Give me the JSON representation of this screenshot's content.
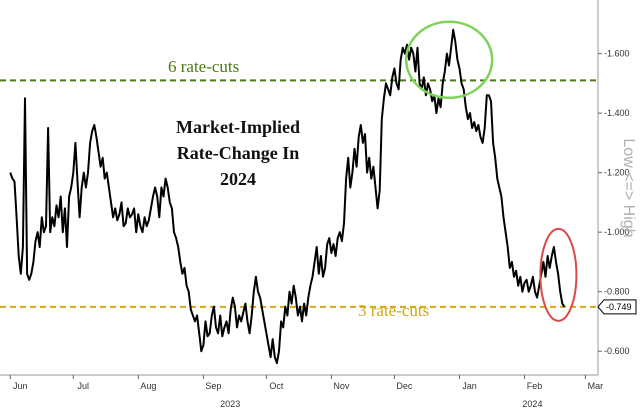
{
  "chart_data": {
    "type": "line",
    "title_lines": [
      "Market-Implied",
      "Rate-Change In",
      "2024"
    ],
    "ylabel": "Low <=> High",
    "y_ticks": [
      0.6,
      0.8,
      1.0,
      1.2,
      1.4,
      1.6
    ],
    "y_tick_labels": [
      "-0.600",
      "-0.800",
      "-1.000",
      "-1.200",
      "-1.400",
      "-1.600"
    ],
    "ylim": [
      0.52,
      1.76
    ],
    "x_ticks": [
      {
        "label": "Jun",
        "d": 0
      },
      {
        "label": "Jul",
        "d": 30
      },
      {
        "label": "Aug",
        "d": 61
      },
      {
        "label": "Sep",
        "d": 92
      },
      {
        "label": "Oct",
        "d": 122
      },
      {
        "label": "Nov",
        "d": 153
      },
      {
        "label": "Dec",
        "d": 183
      },
      {
        "label": "Jan",
        "d": 214
      },
      {
        "label": "Feb",
        "d": 245
      },
      {
        "label": "Mar",
        "d": 274
      }
    ],
    "year_labels": [
      {
        "label": "2023",
        "d": 100
      },
      {
        "label": "2024",
        "d": 244
      }
    ],
    "xlim": [
      -3,
      280
    ],
    "reference_lines": [
      {
        "label": "6 rate-cuts",
        "value": 1.51,
        "color": "#4a7a12"
      },
      {
        "label": "3 rate-cuts",
        "value": 0.749,
        "color": "#d4a810"
      }
    ],
    "last_value_label": "-0.749",
    "last_value": 0.749,
    "grid": false,
    "series": [
      {
        "color": "#000000",
        "points": [
          [
            0,
            1.2
          ],
          [
            1,
            1.18
          ],
          [
            2,
            1.17
          ],
          [
            3,
            1.05
          ],
          [
            4,
            0.92
          ],
          [
            5,
            0.86
          ],
          [
            6,
            0.95
          ],
          [
            7,
            1.45
          ],
          [
            8,
            0.86
          ],
          [
            9,
            0.84
          ],
          [
            10,
            0.86
          ],
          [
            11,
            0.9
          ],
          [
            12,
            0.97
          ],
          [
            13,
            1.0
          ],
          [
            14,
            0.95
          ],
          [
            15,
            1.05
          ],
          [
            16,
            1.0
          ],
          [
            17,
            1.02
          ],
          [
            18,
            1.35
          ],
          [
            19,
            1.0
          ],
          [
            20,
            1.05
          ],
          [
            21,
            1.02
          ],
          [
            22,
            1.09
          ],
          [
            23,
            1.05
          ],
          [
            24,
            1.12
          ],
          [
            25,
            1.0
          ],
          [
            26,
            1.08
          ],
          [
            27,
            0.95
          ],
          [
            28,
            1.12
          ],
          [
            29,
            1.15
          ],
          [
            30,
            1.2
          ],
          [
            31,
            1.3
          ],
          [
            32,
            1.17
          ],
          [
            33,
            1.05
          ],
          [
            34,
            1.15
          ],
          [
            35,
            1.2
          ],
          [
            36,
            1.15
          ],
          [
            37,
            1.2
          ],
          [
            38,
            1.3
          ],
          [
            39,
            1.34
          ],
          [
            40,
            1.36
          ],
          [
            41,
            1.32
          ],
          [
            42,
            1.27
          ],
          [
            43,
            1.22
          ],
          [
            44,
            1.25
          ],
          [
            45,
            1.18
          ],
          [
            46,
            1.2
          ],
          [
            47,
            1.15
          ],
          [
            48,
            1.1
          ],
          [
            49,
            1.05
          ],
          [
            50,
            1.08
          ],
          [
            51,
            1.04
          ],
          [
            52,
            1.06
          ],
          [
            53,
            1.1
          ],
          [
            54,
            1.02
          ],
          [
            55,
            1.03
          ],
          [
            56,
            1.08
          ],
          [
            57,
            1.05
          ],
          [
            58,
            1.06
          ],
          [
            59,
            1.08
          ],
          [
            60,
            1.0
          ],
          [
            61,
            1.06
          ],
          [
            62,
            1.02
          ],
          [
            63,
            1.0
          ],
          [
            64,
            1.05
          ],
          [
            65,
            1.02
          ],
          [
            66,
            1.04
          ],
          [
            67,
            1.08
          ],
          [
            68,
            1.12
          ],
          [
            69,
            1.15
          ],
          [
            70,
            1.12
          ],
          [
            71,
            1.05
          ],
          [
            72,
            1.15
          ],
          [
            73,
            1.12
          ],
          [
            74,
            1.18
          ],
          [
            75,
            1.15
          ],
          [
            76,
            1.1
          ],
          [
            77,
            1.08
          ],
          [
            78,
            1.0
          ],
          [
            79,
            0.98
          ],
          [
            80,
            0.95
          ],
          [
            81,
            0.9
          ],
          [
            82,
            0.86
          ],
          [
            83,
            0.88
          ],
          [
            84,
            0.82
          ],
          [
            85,
            0.8
          ],
          [
            86,
            0.74
          ],
          [
            87,
            0.72
          ],
          [
            88,
            0.7
          ],
          [
            89,
            0.72
          ],
          [
            90,
            0.66
          ],
          [
            91,
            0.6
          ],
          [
            92,
            0.62
          ],
          [
            93,
            0.7
          ],
          [
            94,
            0.65
          ],
          [
            95,
            0.66
          ],
          [
            96,
            0.72
          ],
          [
            97,
            0.75
          ],
          [
            98,
            0.68
          ],
          [
            99,
            0.66
          ],
          [
            100,
            0.72
          ],
          [
            101,
            0.65
          ],
          [
            102,
            0.68
          ],
          [
            103,
            0.7
          ],
          [
            104,
            0.66
          ],
          [
            105,
            0.74
          ],
          [
            106,
            0.78
          ],
          [
            107,
            0.75
          ],
          [
            108,
            0.68
          ],
          [
            109,
            0.72
          ],
          [
            110,
            0.7
          ],
          [
            111,
            0.73
          ],
          [
            112,
            0.76
          ],
          [
            113,
            0.7
          ],
          [
            114,
            0.66
          ],
          [
            115,
            0.72
          ],
          [
            116,
            0.8
          ],
          [
            117,
            0.85
          ],
          [
            118,
            0.8
          ],
          [
            119,
            0.78
          ],
          [
            120,
            0.74
          ],
          [
            121,
            0.7
          ],
          [
            122,
            0.66
          ],
          [
            123,
            0.62
          ],
          [
            124,
            0.58
          ],
          [
            125,
            0.64
          ],
          [
            126,
            0.58
          ],
          [
            127,
            0.56
          ],
          [
            128,
            0.6
          ],
          [
            129,
            0.7
          ],
          [
            130,
            0.68
          ],
          [
            131,
            0.75
          ],
          [
            132,
            0.72
          ],
          [
            133,
            0.8
          ],
          [
            134,
            0.76
          ],
          [
            135,
            0.82
          ],
          [
            136,
            0.78
          ],
          [
            137,
            0.72
          ],
          [
            138,
            0.75
          ],
          [
            139,
            0.7
          ],
          [
            140,
            0.76
          ],
          [
            141,
            0.72
          ],
          [
            142,
            0.78
          ],
          [
            143,
            0.82
          ],
          [
            144,
            0.85
          ],
          [
            145,
            0.9
          ],
          [
            146,
            0.95
          ],
          [
            147,
            0.86
          ],
          [
            148,
            0.92
          ],
          [
            149,
            0.85
          ],
          [
            150,
            0.88
          ],
          [
            151,
            0.96
          ],
          [
            152,
            0.98
          ],
          [
            153,
            0.93
          ],
          [
            154,
            0.96
          ],
          [
            155,
            0.92
          ],
          [
            156,
            0.98
          ],
          [
            157,
            1.0
          ],
          [
            158,
            0.97
          ],
          [
            159,
            1.03
          ],
          [
            160,
            1.18
          ],
          [
            161,
            1.25
          ],
          [
            162,
            1.15
          ],
          [
            163,
            1.2
          ],
          [
            164,
            1.28
          ],
          [
            165,
            1.22
          ],
          [
            166,
            1.32
          ],
          [
            167,
            1.36
          ],
          [
            168,
            1.3
          ],
          [
            169,
            1.33
          ],
          [
            170,
            1.2
          ],
          [
            171,
            1.25
          ],
          [
            172,
            1.18
          ],
          [
            173,
            1.22
          ],
          [
            174,
            1.15
          ],
          [
            175,
            1.08
          ],
          [
            176,
            1.14
          ],
          [
            177,
            1.38
          ],
          [
            178,
            1.45
          ],
          [
            179,
            1.5
          ],
          [
            180,
            1.48
          ],
          [
            181,
            1.46
          ],
          [
            182,
            1.52
          ],
          [
            183,
            1.55
          ],
          [
            184,
            1.5
          ],
          [
            185,
            1.48
          ],
          [
            186,
            1.58
          ],
          [
            187,
            1.62
          ],
          [
            188,
            1.6
          ],
          [
            189,
            1.63
          ],
          [
            190,
            1.58
          ],
          [
            191,
            1.62
          ],
          [
            192,
            1.6
          ],
          [
            193,
            1.54
          ],
          [
            194,
            1.62
          ],
          [
            195,
            1.5
          ],
          [
            196,
            1.48
          ],
          [
            197,
            1.52
          ],
          [
            198,
            1.46
          ],
          [
            199,
            1.5
          ],
          [
            200,
            1.48
          ],
          [
            201,
            1.44
          ],
          [
            202,
            1.46
          ],
          [
            203,
            1.4
          ],
          [
            204,
            1.45
          ],
          [
            205,
            1.42
          ],
          [
            206,
            1.5
          ],
          [
            207,
            1.54
          ],
          [
            208,
            1.6
          ],
          [
            209,
            1.56
          ],
          [
            210,
            1.62
          ],
          [
            211,
            1.68
          ],
          [
            212,
            1.64
          ],
          [
            213,
            1.58
          ],
          [
            214,
            1.55
          ],
          [
            215,
            1.5
          ],
          [
            216,
            1.48
          ],
          [
            217,
            1.42
          ],
          [
            218,
            1.38
          ],
          [
            219,
            1.4
          ],
          [
            220,
            1.35
          ],
          [
            221,
            1.37
          ],
          [
            222,
            1.34
          ],
          [
            223,
            1.36
          ],
          [
            224,
            1.32
          ],
          [
            225,
            1.3
          ],
          [
            226,
            1.35
          ],
          [
            227,
            1.46
          ],
          [
            228,
            1.46
          ],
          [
            229,
            1.44
          ],
          [
            230,
            1.3
          ],
          [
            231,
            1.25
          ],
          [
            232,
            1.18
          ],
          [
            233,
            1.15
          ],
          [
            234,
            1.12
          ],
          [
            235,
            1.05
          ],
          [
            236,
            1.0
          ],
          [
            237,
            0.95
          ],
          [
            238,
            0.88
          ],
          [
            239,
            0.9
          ],
          [
            240,
            0.85
          ],
          [
            241,
            0.87
          ],
          [
            242,
            0.82
          ],
          [
            243,
            0.85
          ],
          [
            244,
            0.8
          ],
          [
            245,
            0.83
          ],
          [
            246,
            0.84
          ],
          [
            247,
            0.8
          ],
          [
            248,
            0.82
          ],
          [
            249,
            0.85
          ],
          [
            250,
            0.8
          ],
          [
            251,
            0.78
          ],
          [
            252,
            0.82
          ],
          [
            253,
            0.86
          ],
          [
            254,
            0.9
          ],
          [
            255,
            0.85
          ],
          [
            256,
            0.92
          ],
          [
            257,
            0.88
          ],
          [
            258,
            0.92
          ],
          [
            259,
            0.95
          ],
          [
            260,
            0.9
          ],
          [
            261,
            0.86
          ],
          [
            262,
            0.8
          ],
          [
            263,
            0.76
          ],
          [
            264,
            0.749
          ]
        ]
      }
    ]
  }
}
